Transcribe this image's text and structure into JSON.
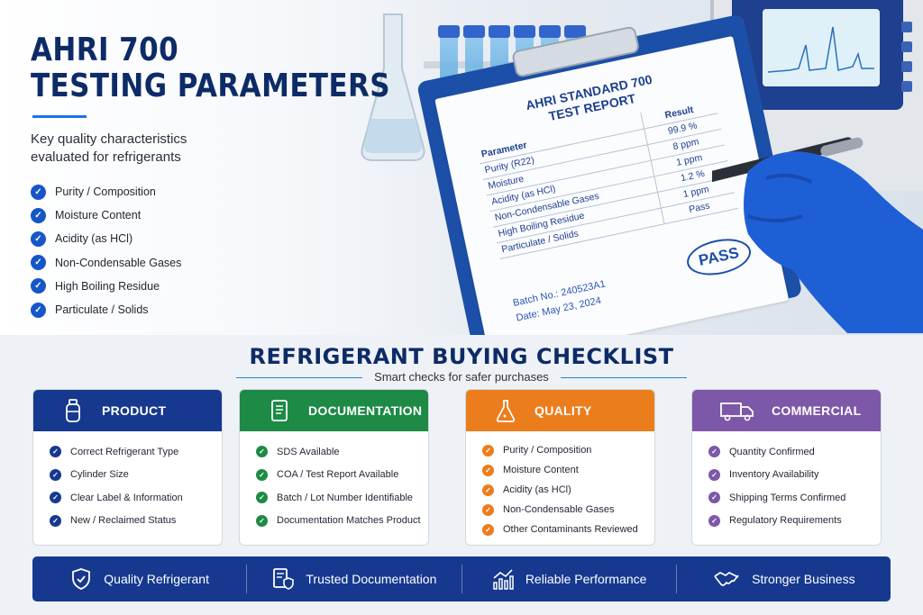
{
  "hero": {
    "title_line1": "AHRI 700",
    "title_line2": "TESTING PARAMETERS",
    "subtitle": "Key quality characteristics evaluated for refrigerants",
    "parameters": [
      "Purity / Composition",
      "Moisture Content",
      "Acidity (as HCl)",
      "Non-Condensable Gases",
      "High Boiling Residue",
      "Particulate / Solids"
    ]
  },
  "report": {
    "title_line1": "AHRI STANDARD 700",
    "title_line2": "TEST REPORT",
    "col_parameter": "Parameter",
    "col_result": "Result",
    "rows": [
      {
        "parameter": "Purity (R22)",
        "result": "99.9 %"
      },
      {
        "parameter": "Moisture",
        "result": "8 ppm"
      },
      {
        "parameter": "Acidity (as HCl)",
        "result": "1 ppm"
      },
      {
        "parameter": "Non-Condensable Gases",
        "result": "1.2 %"
      },
      {
        "parameter": "High Boiling Residue",
        "result": "1 ppm"
      },
      {
        "parameter": "Particulate / Solids",
        "result": "Pass"
      }
    ],
    "batch": "Batch No.: 240523A1",
    "date": "Date: May 23, 2024",
    "stamp": "PASS"
  },
  "checklist": {
    "title": "REFRIGERANT BUYING CHECKLIST",
    "subtitle": "Smart checks for safer purchases",
    "cards": {
      "product": {
        "label": "PRODUCT",
        "items": [
          "Correct Refrigerant Type",
          "Cylinder Size",
          "Clear Label & Information",
          "New / Reclaimed Status"
        ]
      },
      "documentation": {
        "label": "DOCUMENTATION",
        "items": [
          "SDS Available",
          "COA / Test Report Available",
          "Batch / Lot Number Identifiable",
          "Documentation Matches Product"
        ]
      },
      "quality": {
        "label": "QUALITY",
        "items": [
          "Purity / Composition",
          "Moisture Content",
          "Acidity (as HCl)",
          "Non-Condensable Gases",
          "Other Contaminants Reviewed"
        ]
      },
      "commercial": {
        "label": "COMMERCIAL",
        "items": [
          "Quantity Confirmed",
          "Inventory Availability",
          "Shipping Terms Confirmed",
          "Regulatory Requirements"
        ]
      }
    }
  },
  "benefits": [
    {
      "label": "Quality Refrigerant",
      "icon": "shield-check-icon"
    },
    {
      "label": "Trusted Documentation",
      "icon": "document-shield-icon"
    },
    {
      "label": "Reliable Performance",
      "icon": "growth-chart-icon"
    },
    {
      "label": "Stronger Business",
      "icon": "handshake-icon"
    }
  ],
  "colors": {
    "navy": "#16398f",
    "green": "#1d8a45",
    "orange": "#ec7d1d",
    "purple": "#7d57a8",
    "accent_blue": "#1a73e8"
  }
}
